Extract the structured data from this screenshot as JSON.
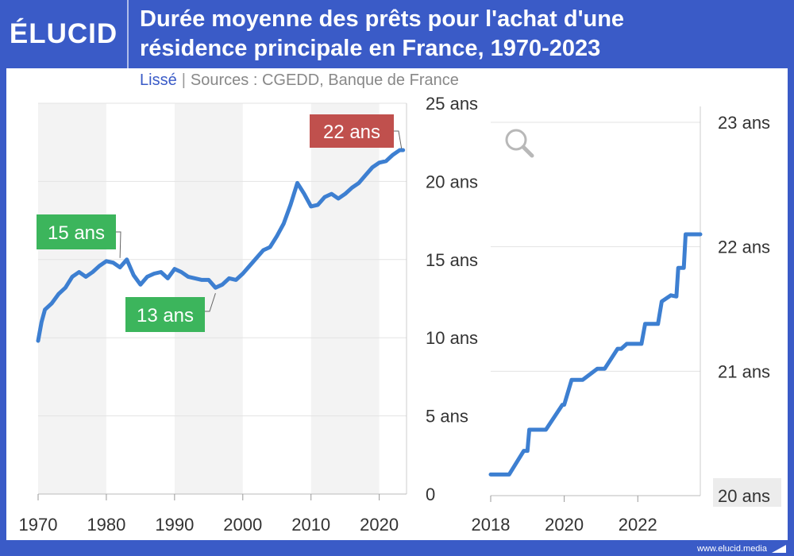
{
  "brand": {
    "logo": "ÉLUCID",
    "footer": "www.elucid.media"
  },
  "header": {
    "title_line1": "Durée moyenne des prêts pour l'achat d'une",
    "title_line2": "résidence principale en France, 1970-2023"
  },
  "subtitle": {
    "lisse": "Lissé",
    "separator": "|",
    "sources": "Sources : CGEDD, Banque de France"
  },
  "colors": {
    "frame": "#3a5bc7",
    "line": "#3d7fd1",
    "green": "#3cb55c",
    "red": "#c0504d",
    "grid": "#e3e3e3",
    "band": "#f3f3f3"
  },
  "icons": {
    "zoom": "magnifier-icon"
  },
  "chart_data": [
    {
      "type": "line",
      "x_ticks": [
        1970,
        1980,
        1990,
        2000,
        2010,
        2020
      ],
      "xlim": [
        1970,
        2024
      ],
      "ylim": [
        0,
        25
      ],
      "y_ticks": [
        0,
        5,
        10,
        15,
        20,
        25
      ],
      "y_tick_labels": [
        "0",
        "5 ans",
        "10 ans",
        "15 ans",
        "20 ans",
        "25 ans"
      ],
      "shaded_decades": [
        [
          1970,
          1980
        ],
        [
          1990,
          2000
        ],
        [
          2010,
          2020
        ]
      ],
      "annotations": [
        {
          "label": "15 ans",
          "year": 1982,
          "value": 15,
          "color": "green"
        },
        {
          "label": "13 ans",
          "year": 1996,
          "value": 13,
          "color": "green"
        },
        {
          "label": "22 ans",
          "year": 2023.5,
          "value": 22,
          "color": "red"
        }
      ],
      "series": [
        {
          "x": [
            1970,
            1970.5,
            1971,
            1972,
            1973,
            1974,
            1975,
            1976,
            1977,
            1978,
            1979,
            1980,
            1981,
            1982,
            1983,
            1984,
            1985,
            1986,
            1987,
            1988,
            1989,
            1990,
            1991,
            1992,
            1993,
            1994,
            1995,
            1996,
            1997,
            1998,
            1999,
            2000,
            2001,
            2002,
            2003,
            2004,
            2005,
            2006,
            2007,
            2008,
            2009,
            2010,
            2011,
            2012,
            2013,
            2014,
            2015,
            2016,
            2017,
            2018,
            2019,
            2020,
            2021,
            2022,
            2023,
            2023.5
          ],
          "y": [
            9.8,
            11.0,
            11.8,
            12.2,
            12.8,
            13.2,
            13.9,
            14.2,
            13.9,
            14.2,
            14.6,
            14.9,
            14.8,
            14.5,
            15.0,
            14.0,
            13.4,
            13.9,
            14.1,
            14.2,
            13.8,
            14.4,
            14.2,
            13.9,
            13.8,
            13.7,
            13.7,
            13.2,
            13.4,
            13.8,
            13.7,
            14.1,
            14.6,
            15.1,
            15.6,
            15.8,
            16.5,
            17.3,
            18.5,
            19.9,
            19.2,
            18.4,
            18.5,
            19.0,
            19.2,
            18.9,
            19.2,
            19.6,
            19.9,
            20.4,
            20.9,
            21.2,
            21.3,
            21.7,
            22.0,
            22.0
          ]
        }
      ]
    },
    {
      "type": "line",
      "x_ticks": [
        2018,
        2020,
        2022
      ],
      "xlim": [
        2018,
        2023.7
      ],
      "ylim": [
        20,
        23
      ],
      "y_ticks": [
        20,
        21,
        22,
        23
      ],
      "y_tick_labels": [
        "20 ans",
        "21 ans",
        "22 ans",
        "23 ans"
      ],
      "series": [
        {
          "x": [
            2018.0,
            2018.5,
            2018.9,
            2019.0,
            2019.05,
            2019.5,
            2019.95,
            2020.0,
            2020.2,
            2020.5,
            2020.9,
            2021.1,
            2021.45,
            2021.55,
            2021.7,
            2022.1,
            2022.2,
            2022.55,
            2022.65,
            2022.9,
            2023.05,
            2023.1,
            2023.25,
            2023.3,
            2023.7
          ],
          "y": [
            20.17,
            20.17,
            20.36,
            20.36,
            20.53,
            20.53,
            20.73,
            20.73,
            20.93,
            20.93,
            21.02,
            21.02,
            21.18,
            21.18,
            21.22,
            21.22,
            21.38,
            21.38,
            21.56,
            21.61,
            21.6,
            21.83,
            21.83,
            22.1,
            22.1
          ]
        }
      ]
    }
  ]
}
